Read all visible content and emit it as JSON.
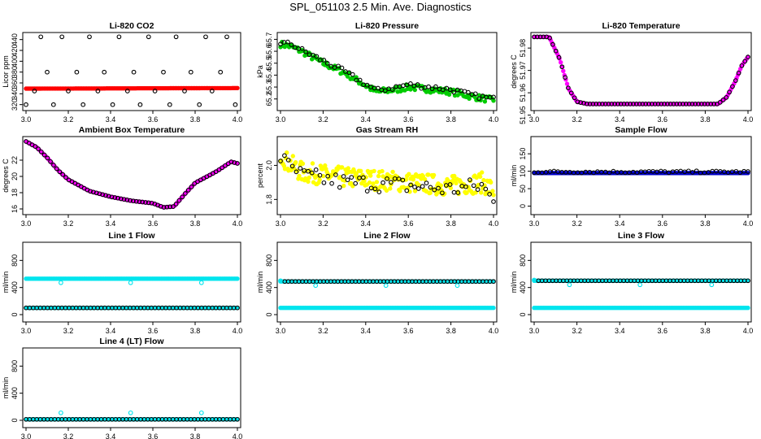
{
  "page": {
    "title": "SPL_051103  2.5 Min. Ave. Diagnostics"
  },
  "chart_data": [
    {
      "type": "scatter",
      "title": "Li-820 CO2",
      "xlabel": "",
      "ylabel": "Licor ppm",
      "xlim": [
        3.0,
        4.0
      ],
      "ylim": [
        315,
        447
      ],
      "xticks": [
        "3.0",
        "3.2",
        "3.4",
        "3.6",
        "3.8",
        "4.0"
      ],
      "yticks": [
        "320",
        "340",
        "360",
        "380",
        "400",
        "420",
        "440"
      ],
      "series": [
        {
          "name": "Li-820 CO2 (averaged)",
          "color": "#ff0000",
          "marker": "filled",
          "x": [
            3.0,
            4.0
          ],
          "y": [
            349.5,
            350.5
          ],
          "generator": "smooth",
          "n": 130
        },
        {
          "name": "Li-820 CO2 (raw)",
          "color": "#000000",
          "marker": "open",
          "x": [
            3.0,
            3.04,
            3.07,
            3.1,
            3.13,
            3.17,
            3.2,
            3.24,
            3.27,
            3.3,
            3.34,
            3.37,
            3.41,
            3.44,
            3.48,
            3.51,
            3.54,
            3.58,
            3.61,
            3.65,
            3.68,
            3.71,
            3.75,
            3.78,
            3.82,
            3.85,
            3.88,
            3.92,
            3.95,
            3.99
          ],
          "y": [
            320,
            345,
            445,
            380,
            320,
            445,
            345,
            380,
            320,
            445,
            345,
            380,
            320,
            445,
            345,
            380,
            320,
            445,
            345,
            380,
            320,
            445,
            345,
            380,
            320,
            445,
            345,
            380,
            445,
            320
          ]
        }
      ]
    },
    {
      "type": "scatter",
      "title": "Li-820 Pressure",
      "xlabel": "",
      "ylabel": "kPa",
      "xlim": [
        3.0,
        4.0
      ],
      "ylim": [
        65.13,
        65.73
      ],
      "xticks": [
        "3.0",
        "3.2",
        "3.4",
        "3.6",
        "3.8",
        "4.0"
      ],
      "yticks": [
        "65.2",
        "65.3",
        "65.4",
        "65.5",
        "65.6",
        "65.7"
      ],
      "series": [
        {
          "name": "Li-820 Pressure (averaged)",
          "color": "#00cc00",
          "marker": "filled",
          "x": [
            3.0,
            3.05,
            3.1,
            3.2,
            3.3,
            3.45,
            3.55,
            3.6,
            3.7,
            3.75,
            3.8,
            3.9,
            4.0
          ],
          "y": [
            65.66,
            65.64,
            65.6,
            65.5,
            65.42,
            65.26,
            65.28,
            65.3,
            65.28,
            65.27,
            65.26,
            65.22,
            65.19
          ],
          "generator": "jitter",
          "n": 150,
          "amp": 0.025
        },
        {
          "name": "Li-820 Pressure (raw)",
          "color": "#000000",
          "marker": "open",
          "x": [
            3.0,
            3.05,
            3.1,
            3.2,
            3.3,
            3.45,
            3.55,
            3.6,
            3.7,
            3.75,
            3.8,
            3.9,
            4.0
          ],
          "y": [
            65.67,
            65.66,
            65.61,
            65.52,
            65.43,
            65.27,
            65.3,
            65.32,
            65.3,
            65.29,
            65.28,
            65.23,
            65.2
          ],
          "generator": "jitter",
          "n": 60,
          "amp": 0.02
        }
      ]
    },
    {
      "type": "scatter",
      "title": "Li-820 Temperature",
      "xlabel": "",
      "ylabel": "degrees C",
      "xlim": [
        3.0,
        4.0
      ],
      "ylim": [
        51.9535,
        51.9855
      ],
      "xticks": [
        "3.0",
        "3.2",
        "3.4",
        "3.6",
        "3.8",
        "4.0"
      ],
      "yticks": [
        "51.95",
        "51.96",
        "51.97",
        "51.98"
      ],
      "series": [
        {
          "name": "Li-820 Temperature (averaged)",
          "color": "#ff00ff",
          "marker": "filled",
          "x": [
            3.0,
            3.07,
            3.12,
            3.16,
            3.2,
            3.25,
            3.5,
            3.86,
            3.9,
            3.94,
            3.97,
            4.0
          ],
          "y": [
            51.985,
            51.985,
            51.975,
            51.962,
            51.956,
            51.955,
            51.955,
            51.955,
            51.958,
            51.965,
            51.972,
            51.976
          ],
          "generator": "smooth",
          "n": 170
        },
        {
          "name": "Li-820 Temperature (raw)",
          "color": "#000000",
          "marker": "open",
          "x": [
            3.0,
            3.07,
            3.12,
            3.16,
            3.2,
            3.25,
            3.5,
            3.86,
            3.9,
            3.94,
            3.97,
            4.0
          ],
          "y": [
            51.985,
            51.985,
            51.975,
            51.962,
            51.956,
            51.955,
            51.955,
            51.955,
            51.958,
            51.965,
            51.972,
            51.976
          ],
          "generator": "smooth",
          "n": 70
        }
      ]
    },
    {
      "type": "scatter",
      "title": "Ambient Box Temperature",
      "xlabel": "",
      "ylabel": "degrees C",
      "xlim": [
        3.0,
        4.0
      ],
      "ylim": [
        15.7,
        24.5
      ],
      "xticks": [
        "3.0",
        "3.2",
        "3.4",
        "3.6",
        "3.8",
        "4.0"
      ],
      "yticks": [
        "16",
        "18",
        "20",
        "22"
      ],
      "series": [
        {
          "name": "Ambient Box Temperature (averaged)",
          "color": "#ff00ff",
          "marker": "filled",
          "x": [
            3.0,
            3.05,
            3.1,
            3.15,
            3.2,
            3.3,
            3.4,
            3.5,
            3.6,
            3.65,
            3.7,
            3.75,
            3.8,
            3.9,
            3.97,
            4.0
          ],
          "y": [
            24.3,
            23.6,
            22.3,
            20.8,
            19.6,
            18.2,
            17.5,
            17.0,
            16.7,
            16.2,
            16.3,
            17.8,
            19.2,
            20.6,
            21.8,
            21.6
          ],
          "generator": "smooth",
          "n": 170
        },
        {
          "name": "Ambient Box Temperature (raw)",
          "color": "#000000",
          "marker": "open",
          "x": [
            3.0,
            3.05,
            3.1,
            3.15,
            3.2,
            3.3,
            3.4,
            3.5,
            3.6,
            3.65,
            3.7,
            3.75,
            3.8,
            3.9,
            3.97,
            4.0
          ],
          "y": [
            24.3,
            23.6,
            22.3,
            20.8,
            19.6,
            18.2,
            17.5,
            17.0,
            16.7,
            16.2,
            16.3,
            17.8,
            19.2,
            20.6,
            21.8,
            21.6
          ],
          "generator": "smooth",
          "n": 70
        }
      ]
    },
    {
      "type": "scatter",
      "title": "Gas Stream RH",
      "xlabel": "",
      "ylabel": "percent",
      "xlim": [
        3.0,
        4.0
      ],
      "ylim": [
        1.73,
        2.15
      ],
      "xticks": [
        "3.0",
        "3.2",
        "3.4",
        "3.6",
        "3.8",
        "4.0"
      ],
      "yticks": [
        "1.8",
        "2.0"
      ],
      "series": [
        {
          "name": "Gas Stream RH (averaged)",
          "color": "#ffff00",
          "marker": "filled",
          "x": [
            3.0,
            3.03,
            3.1,
            3.3,
            3.5,
            3.7,
            3.8,
            3.95,
            4.0
          ],
          "y": [
            2.08,
            2.02,
            1.96,
            1.93,
            1.91,
            1.89,
            1.88,
            1.9,
            1.85
          ],
          "generator": "jitter",
          "n": 240,
          "amp": 0.06
        },
        {
          "name": "Gas Stream RH (raw)",
          "color": "#000000",
          "marker": "open",
          "x": [
            3.0,
            3.03,
            3.1,
            3.3,
            3.5,
            3.7,
            3.8,
            3.95,
            4.0
          ],
          "y": [
            2.05,
            2.0,
            1.94,
            1.9,
            1.89,
            1.87,
            1.86,
            1.88,
            1.78
          ],
          "generator": "jitter",
          "n": 55,
          "amp": 0.05
        }
      ]
    },
    {
      "type": "scatter",
      "title": "Sample Flow",
      "xlabel": "",
      "ylabel": "ml/min",
      "xlim": [
        3.0,
        4.0
      ],
      "ylim": [
        -15,
        190
      ],
      "xticks": [
        "3.0",
        "3.2",
        "3.4",
        "3.6",
        "3.8",
        "4.0"
      ],
      "yticks": [
        "0",
        "50",
        "100",
        "150"
      ],
      "series": [
        {
          "name": "Sample Flow (averaged)",
          "color": "#0000cc",
          "marker": "filled",
          "x": [
            3.0,
            4.0
          ],
          "y": [
            95,
            95
          ],
          "generator": "smooth",
          "n": 150
        },
        {
          "name": "Sample Flow (raw)",
          "color": "#000000",
          "marker": "open",
          "x": [
            3.0,
            4.0
          ],
          "y": [
            98,
            98
          ],
          "generator": "jitter",
          "n": 55,
          "amp": 3
        }
      ]
    },
    {
      "type": "scatter",
      "title": "Line 1 Flow",
      "xlabel": "",
      "ylabel": "ml/min",
      "xlim": [
        3.0,
        4.0
      ],
      "ylim": [
        -60,
        1020
      ],
      "xticks": [
        "3.0",
        "3.2",
        "3.4",
        "3.6",
        "3.8",
        "4.0"
      ],
      "yticks": [
        "0",
        "400",
        "800"
      ],
      "series": [
        {
          "name": "Line 1 Flow (averaged)",
          "color": "#00e5ee",
          "marker": "filled",
          "x": [
            3.0,
            4.0
          ],
          "y": [
            530,
            530
          ],
          "generator": "smooth",
          "n": 140
        },
        {
          "name": "Line 1 Flow (low)",
          "color": "#00e5ee",
          "marker": "filled",
          "x": [
            3.0,
            4.0
          ],
          "y": [
            100,
            100
          ],
          "generator": "smooth",
          "n": 100
        },
        {
          "name": "Line 1 Flow (raw)",
          "color": "#000000",
          "marker": "open",
          "x": [
            3.0,
            4.0
          ],
          "y": [
            100,
            100
          ],
          "generator": "smooth",
          "n": 60
        },
        {
          "name": "Line 1 Flow (outliers)",
          "color": "#00e5ee",
          "marker": "open",
          "x": [
            3.165,
            3.495,
            3.83
          ],
          "y": [
            470,
            470,
            470
          ]
        }
      ]
    },
    {
      "type": "scatter",
      "title": "Line 2 Flow",
      "xlabel": "",
      "ylabel": "ml/min",
      "xlim": [
        3.0,
        4.0
      ],
      "ylim": [
        -60,
        1020
      ],
      "xticks": [
        "3.0",
        "3.2",
        "3.4",
        "3.6",
        "3.8",
        "4.0"
      ],
      "yticks": [
        "0",
        "400",
        "800"
      ],
      "series": [
        {
          "name": "Line 2 Flow (averaged)",
          "color": "#00e5ee",
          "marker": "filled",
          "x": [
            3.0,
            4.0
          ],
          "y": [
            490,
            490
          ],
          "generator": "smooth",
          "n": 140
        },
        {
          "name": "Line 2 Flow (low)",
          "color": "#00e5ee",
          "marker": "filled",
          "x": [
            3.0,
            4.0
          ],
          "y": [
            100,
            100
          ],
          "generator": "smooth",
          "n": 140
        },
        {
          "name": "Line 2 Flow (raw)",
          "color": "#000000",
          "marker": "open",
          "x": [
            3.02,
            4.0
          ],
          "y": [
            490,
            490
          ],
          "generator": "smooth",
          "n": 60
        },
        {
          "name": "Line 2 Flow (outliers)",
          "color": "#00e5ee",
          "marker": "open",
          "x": [
            3.0,
            3.165,
            3.495,
            3.83
          ],
          "y": [
            500,
            430,
            430,
            430
          ]
        }
      ]
    },
    {
      "type": "scatter",
      "title": "Line 3 Flow",
      "xlabel": "",
      "ylabel": "ml/min",
      "xlim": [
        3.0,
        4.0
      ],
      "ylim": [
        -60,
        1020
      ],
      "xticks": [
        "3.0",
        "3.2",
        "3.4",
        "3.6",
        "3.8",
        "4.0"
      ],
      "yticks": [
        "0",
        "400",
        "800"
      ],
      "series": [
        {
          "name": "Line 3 Flow (averaged)",
          "color": "#00e5ee",
          "marker": "filled",
          "x": [
            3.0,
            4.0
          ],
          "y": [
            500,
            500
          ],
          "generator": "smooth",
          "n": 140
        },
        {
          "name": "Line 3 Flow (low)",
          "color": "#00e5ee",
          "marker": "filled",
          "x": [
            3.0,
            4.0
          ],
          "y": [
            100,
            100
          ],
          "generator": "smooth",
          "n": 140
        },
        {
          "name": "Line 3 Flow (raw)",
          "color": "#000000",
          "marker": "open",
          "x": [
            3.02,
            4.0
          ],
          "y": [
            500,
            500
          ],
          "generator": "smooth",
          "n": 60
        },
        {
          "name": "Line 3 Flow (outliers)",
          "color": "#00e5ee",
          "marker": "open",
          "x": [
            3.0,
            3.165,
            3.495,
            3.83
          ],
          "y": [
            510,
            440,
            440,
            440
          ]
        }
      ]
    },
    {
      "type": "scatter",
      "title": "Line 4 (LT) Flow",
      "xlabel": "",
      "ylabel": "ml/min",
      "xlim": [
        3.0,
        4.0
      ],
      "ylim": [
        -60,
        1020
      ],
      "xticks": [
        "3.0",
        "3.2",
        "3.4",
        "3.6",
        "3.8",
        "4.0"
      ],
      "yticks": [
        "0",
        "400",
        "800"
      ],
      "series": [
        {
          "name": "Line 4 (LT) Flow (averaged)",
          "color": "#00e5ee",
          "marker": "filled",
          "x": [
            3.0,
            4.0
          ],
          "y": [
            15,
            15
          ],
          "generator": "smooth",
          "n": 140
        },
        {
          "name": "Line 4 (LT) Flow (raw)",
          "color": "#000000",
          "marker": "open",
          "x": [
            3.0,
            4.0
          ],
          "y": [
            15,
            15
          ],
          "generator": "smooth",
          "n": 60
        },
        {
          "name": "Line 4 (LT) Flow (outliers)",
          "color": "#00e5ee",
          "marker": "open",
          "x": [
            3.165,
            3.495,
            3.83
          ],
          "y": [
            110,
            110,
            110
          ]
        }
      ]
    }
  ]
}
